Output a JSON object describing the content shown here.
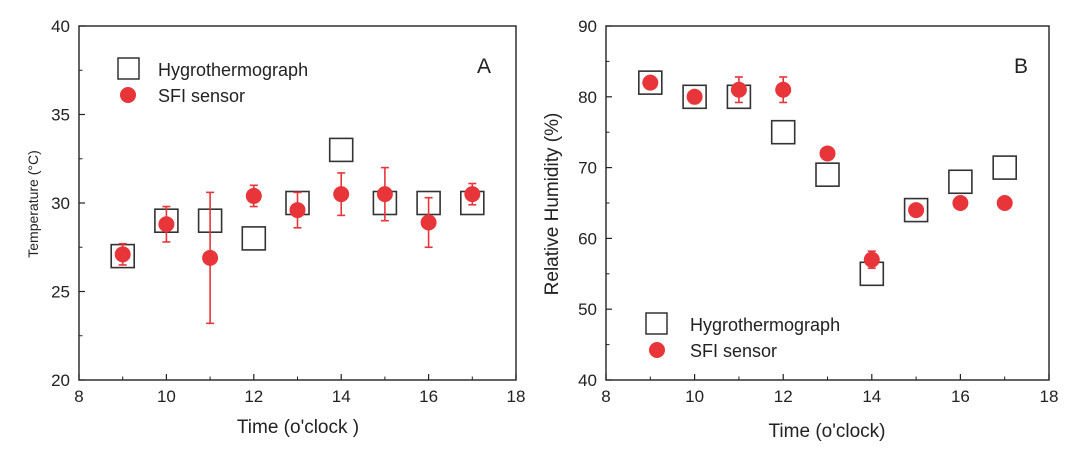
{
  "colors": {
    "sensor": "#e8353a",
    "hygro_stroke": "#333333",
    "axis": "#222222"
  },
  "chart_data": [
    {
      "type": "scatter",
      "panel": "A",
      "title": "",
      "xlabel": "Time (o'clock )",
      "ylabel": "Temperature (°C)",
      "xlim": [
        8,
        18
      ],
      "ylim": [
        20,
        40
      ],
      "xticks": [
        8,
        10,
        12,
        14,
        16,
        18
      ],
      "yticks": [
        20,
        25,
        30,
        35,
        40
      ],
      "legend_position": "top-left",
      "series": [
        {
          "name": "Hygrothermograph",
          "marker": "open-square",
          "x": [
            9,
            10,
            11,
            12,
            13,
            14,
            15,
            16,
            17
          ],
          "y": [
            27,
            29,
            29,
            28,
            30,
            33,
            30,
            30,
            30
          ]
        },
        {
          "name": "SFI sensor",
          "marker": "filled-circle",
          "x": [
            9,
            10,
            11,
            12,
            13,
            14,
            15,
            16,
            17
          ],
          "y": [
            27.1,
            28.8,
            26.9,
            30.4,
            29.6,
            30.5,
            30.5,
            28.9,
            30.5
          ],
          "err": [
            0.6,
            1.0,
            3.7,
            0.6,
            1.0,
            1.2,
            1.5,
            1.4,
            0.6
          ]
        }
      ]
    },
    {
      "type": "scatter",
      "panel": "B",
      "title": "",
      "xlabel": "Time (o'clock)",
      "ylabel": "Relative Humidity (%)",
      "xlim": [
        8,
        18
      ],
      "ylim": [
        40,
        90
      ],
      "xticks": [
        8,
        10,
        12,
        14,
        16,
        18
      ],
      "yticks": [
        40,
        50,
        60,
        70,
        80,
        90
      ],
      "legend_position": "bottom-left",
      "series": [
        {
          "name": "Hygrothermograph",
          "marker": "open-square",
          "x": [
            9,
            10,
            11,
            12,
            13,
            14,
            15,
            16,
            17
          ],
          "y": [
            82,
            80,
            80,
            75,
            69,
            55,
            64,
            68,
            70
          ]
        },
        {
          "name": "SFI sensor",
          "marker": "filled-circle",
          "x": [
            9,
            10,
            11,
            12,
            13,
            14,
            15,
            16,
            17
          ],
          "y": [
            82,
            80,
            81,
            81,
            72,
            57,
            64,
            65,
            65
          ],
          "err": [
            0,
            0,
            1.8,
            1.8,
            0,
            1.2,
            0,
            0,
            0
          ]
        }
      ]
    }
  ]
}
